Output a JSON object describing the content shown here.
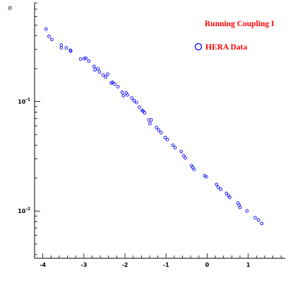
{
  "chart_data": {
    "type": "scatter",
    "title": "Running Coupling I",
    "ylabel": "σ",
    "xlabel": "",
    "y_scale": "log",
    "x_ticks": [
      "-4",
      "-3",
      "-2",
      "-1",
      "0",
      "1"
    ],
    "x_tick_values": [
      -4,
      -3,
      -2,
      -1,
      0,
      1
    ],
    "y_ticks": [
      {
        "value": 0.1,
        "base": "10",
        "exp": "-1"
      },
      {
        "value": 0.01,
        "base": "10",
        "exp": "-2"
      }
    ],
    "xlim": [
      -4.2,
      1.9
    ],
    "ylim": [
      0.0037,
      0.8
    ],
    "grid": false,
    "legend": "top-right",
    "colors": {
      "title": "#ff0000",
      "marker": "#0000ff",
      "axis": "#000000"
    },
    "series": [
      {
        "name": "HERA Data",
        "marker": "open-circle",
        "points": [
          [
            -3.92,
            0.46
          ],
          [
            -3.85,
            0.395
          ],
          [
            -3.78,
            0.37
          ],
          [
            -3.55,
            0.33
          ],
          [
            -3.55,
            0.31
          ],
          [
            -3.43,
            0.31
          ],
          [
            -3.33,
            0.295
          ],
          [
            -3.32,
            0.29
          ],
          [
            -3.08,
            0.245
          ],
          [
            -2.99,
            0.247
          ],
          [
            -2.95,
            0.25
          ],
          [
            -2.88,
            0.235
          ],
          [
            -2.75,
            0.21
          ],
          [
            -2.73,
            0.195
          ],
          [
            -2.66,
            0.2
          ],
          [
            -2.62,
            0.187
          ],
          [
            -2.53,
            0.175
          ],
          [
            -2.47,
            0.168
          ],
          [
            -2.42,
            0.178
          ],
          [
            -2.33,
            0.148
          ],
          [
            -2.3,
            0.15
          ],
          [
            -2.25,
            0.145
          ],
          [
            -2.17,
            0.137
          ],
          [
            -2.07,
            0.122
          ],
          [
            -2.04,
            0.113
          ],
          [
            -1.97,
            0.12
          ],
          [
            -1.94,
            0.115
          ],
          [
            -1.83,
            0.108
          ],
          [
            -1.78,
            0.102
          ],
          [
            -1.72,
            0.098
          ],
          [
            -1.65,
            0.089
          ],
          [
            -1.58,
            0.083
          ],
          [
            -1.56,
            0.082
          ],
          [
            -1.52,
            0.079
          ],
          [
            -1.42,
            0.068
          ],
          [
            -1.39,
            0.063
          ],
          [
            -1.36,
            0.068
          ],
          [
            -1.23,
            0.058
          ],
          [
            -1.18,
            0.055
          ],
          [
            -1.12,
            0.052
          ],
          [
            -1.02,
            0.047
          ],
          [
            -0.97,
            0.045
          ],
          [
            -0.83,
            0.04
          ],
          [
            -0.78,
            0.038
          ],
          [
            -0.63,
            0.035
          ],
          [
            -0.57,
            0.032
          ],
          [
            -0.53,
            0.0305
          ],
          [
            -0.38,
            0.026
          ],
          [
            -0.35,
            0.025
          ],
          [
            -0.32,
            0.024
          ],
          [
            -0.06,
            0.021
          ],
          [
            -0.02,
            0.0205
          ],
          [
            0.23,
            0.0175
          ],
          [
            0.27,
            0.0165
          ],
          [
            0.33,
            0.0158
          ],
          [
            0.47,
            0.0145
          ],
          [
            0.52,
            0.0138
          ],
          [
            0.55,
            0.0133
          ],
          [
            0.75,
            0.0118
          ],
          [
            0.78,
            0.0113
          ],
          [
            0.8,
            0.0108
          ],
          [
            0.97,
            0.01
          ],
          [
            1.17,
            0.0087
          ],
          [
            1.25,
            0.0083
          ],
          [
            1.33,
            0.0077
          ]
        ]
      }
    ]
  }
}
